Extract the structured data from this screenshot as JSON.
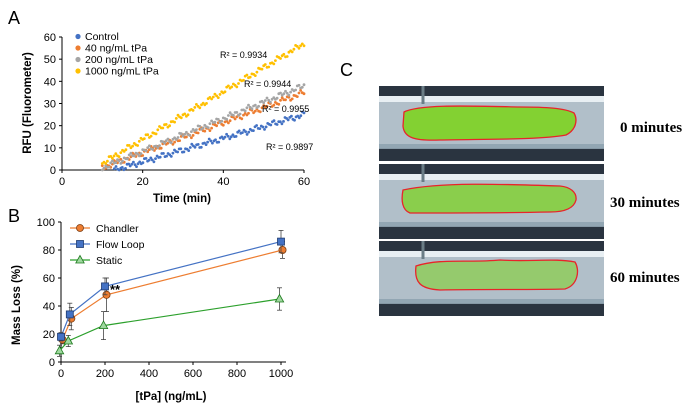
{
  "panels": {
    "a": "A",
    "b": "B",
    "c": "C"
  },
  "colors": {
    "control": "#4472c4",
    "tpa40": "#ed7d31",
    "tpa200": "#a5a5a5",
    "tpa1000": "#ffc000",
    "chandler": "#ed7d31",
    "flowloop": "#4472c4",
    "static": "#2ca02c",
    "outline": "#e8242a",
    "tube": "#c9d8e2",
    "clot": "#7ed321"
  },
  "chart_data": [
    {
      "type": "scatter",
      "xlabel": "Time (min)",
      "ylabel": "RFU (Fluorometer)",
      "xlim": [
        0,
        60
      ],
      "ylim": [
        0,
        60
      ],
      "xticks": [
        0,
        20,
        40,
        60
      ],
      "yticks": [
        0,
        10,
        20,
        30,
        40,
        50,
        60
      ],
      "grid": false,
      "legend_position": "top-left",
      "series": [
        {
          "name": "Control",
          "x_start": 13,
          "y_start": 0,
          "x_end": 60,
          "y_end": 25,
          "r2": "R² = 0.9897"
        },
        {
          "name": "40 ng/mL tPa",
          "x_start": 10,
          "y_start": 1,
          "x_end": 60,
          "y_end": 35,
          "r2": "R² = 0.9955"
        },
        {
          "name": "200 ng/mL tPa",
          "x_start": 10,
          "y_start": 1,
          "x_end": 60,
          "y_end": 38,
          "r2": "R² = 0.9944"
        },
        {
          "name": "1000 ng/mL tPa",
          "x_start": 10,
          "y_start": 3,
          "x_end": 60,
          "y_end": 57,
          "r2": "R² = 0.9934"
        }
      ]
    },
    {
      "type": "line",
      "xlabel": "[tPa] (ng/mL)",
      "ylabel": "Mass Loss (%)",
      "xlim": [
        0,
        1000
      ],
      "ylim": [
        0,
        100
      ],
      "xticks": [
        0,
        200,
        400,
        600,
        800,
        1000
      ],
      "yticks": [
        0,
        20,
        40,
        60,
        80,
        100
      ],
      "grid": false,
      "legend_position": "top-left",
      "x": [
        0,
        40,
        200,
        1000
      ],
      "annotation": {
        "text": "**",
        "x": 250,
        "y": 57
      },
      "series": [
        {
          "name": "Chandler",
          "marker": "circle",
          "values": [
            16,
            31,
            48,
            80
          ],
          "errors": [
            3,
            8,
            12,
            6
          ]
        },
        {
          "name": "Flow Loop",
          "marker": "square",
          "values": [
            18,
            34,
            54,
            86
          ],
          "errors": [
            3,
            8,
            6,
            8
          ]
        },
        {
          "name": "Static",
          "marker": "triangle",
          "values": [
            8,
            15,
            26,
            45
          ],
          "errors": [
            4,
            4,
            10,
            8
          ]
        }
      ]
    }
  ],
  "images": {
    "frames": [
      {
        "label": "0 minutes"
      },
      {
        "label": "30 minutes"
      },
      {
        "label": "60 minutes"
      }
    ]
  }
}
